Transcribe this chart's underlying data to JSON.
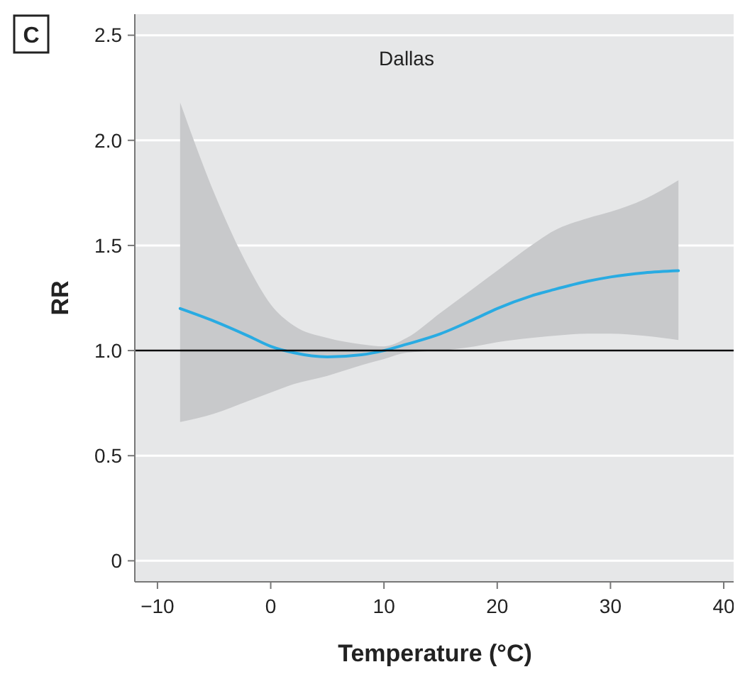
{
  "chart_data": {
    "type": "line",
    "title": "Dallas",
    "xlabel": "Temperature (°C)",
    "ylabel": "RR",
    "annotations": [
      "C"
    ],
    "xlim": [
      -12,
      41
    ],
    "ylim": [
      -0.1,
      2.6
    ],
    "xticks": [
      {
        "value": -10,
        "label": "−10"
      },
      0,
      10,
      20,
      30,
      40
    ],
    "yticks": [
      0,
      0.5,
      {
        "value": 1,
        "label": "1.0"
      },
      1.5,
      {
        "value": 2,
        "label": "2.0"
      },
      2.5
    ],
    "grid": "y",
    "marker": "none",
    "line_style": "solid",
    "ref_lines": [
      {
        "axis": "y",
        "value": 1,
        "color": "#000000"
      }
    ],
    "series": [
      {
        "color": "#29abe2",
        "x": [
          -8,
          -5,
          -2,
          0,
          2,
          5,
          8,
          10,
          12,
          15,
          18,
          20,
          23,
          25,
          28,
          30,
          33,
          36
        ],
        "values": [
          1.2,
          1.14,
          1.07,
          1.02,
          0.99,
          0.97,
          0.98,
          1.0,
          1.03,
          1.08,
          1.15,
          1.2,
          1.26,
          1.29,
          1.33,
          1.35,
          1.37,
          1.38
        ],
        "lower": [
          0.66,
          0.7,
          0.76,
          0.8,
          0.84,
          0.88,
          0.93,
          0.96,
          0.99,
          1.0,
          1.02,
          1.04,
          1.06,
          1.07,
          1.08,
          1.08,
          1.07,
          1.05
        ],
        "upper": [
          2.18,
          1.75,
          1.4,
          1.22,
          1.12,
          1.06,
          1.03,
          1.02,
          1.06,
          1.18,
          1.3,
          1.38,
          1.5,
          1.57,
          1.63,
          1.66,
          1.72,
          1.81
        ]
      }
    ]
  }
}
